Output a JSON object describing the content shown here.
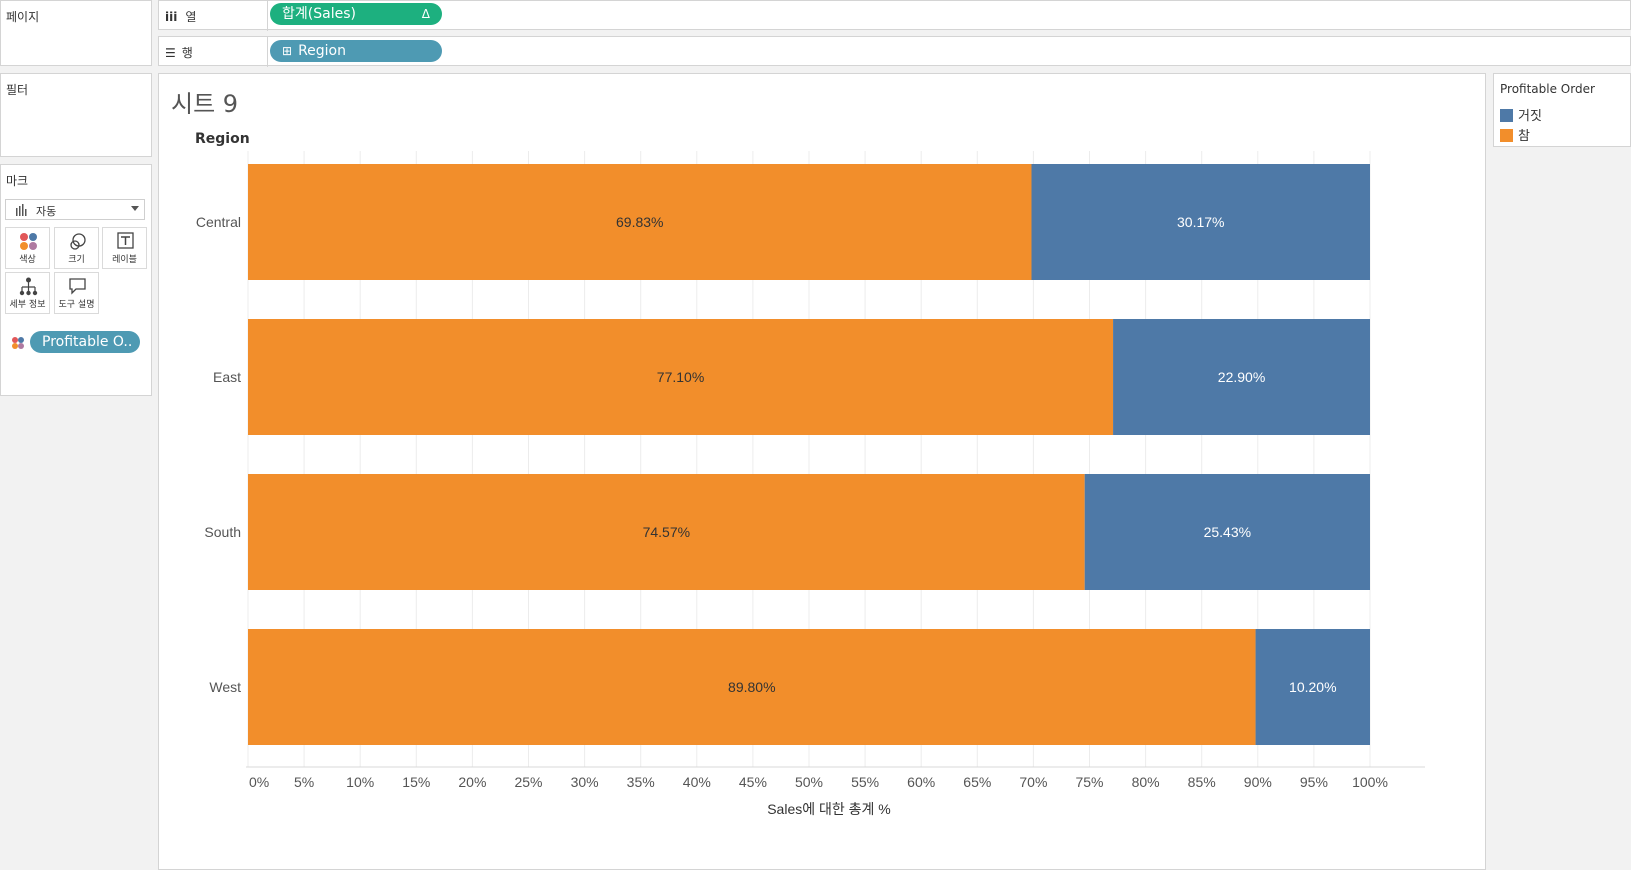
{
  "left_panel": {
    "pages_title": "페이지",
    "filters_title": "필터",
    "marks_title": "마크",
    "mark_type": {
      "icon": "bar-chart-icon",
      "label": "자동"
    },
    "mark_buttons": [
      {
        "icon": "color-icon",
        "label": "색상"
      },
      {
        "icon": "size-icon",
        "label": "크기"
      },
      {
        "icon": "label-icon",
        "label": "레이블"
      },
      {
        "icon": "detail-icon",
        "label": "세부 정보"
      },
      {
        "icon": "tooltip-icon",
        "label": "도구 설명"
      }
    ],
    "color_field_pill": "Profitable O.."
  },
  "shelves": {
    "columns": {
      "label": "열",
      "pill": "합계(Sales)",
      "pill_symbol": "Δ"
    },
    "rows": {
      "label": "행",
      "pill": "Region",
      "pill_symbol": "⊞"
    }
  },
  "sheet": {
    "title": "시트 9",
    "row_header": "Region"
  },
  "legend": {
    "title": "Profitable Order",
    "items": [
      {
        "label": "거짓",
        "color": "#4e79a7"
      },
      {
        "label": "참",
        "color": "#f28e2b"
      }
    ]
  },
  "chart_data": {
    "type": "bar",
    "orientation": "horizontal",
    "stacked": true,
    "categories": [
      "Central",
      "East",
      "South",
      "West"
    ],
    "series": [
      {
        "name": "참",
        "color": "#f28e2b",
        "values": [
          69.83,
          77.1,
          74.57,
          89.8
        ],
        "labels": [
          "69.83%",
          "77.10%",
          "74.57%",
          "89.80%"
        ],
        "label_color": "#333333"
      },
      {
        "name": "거짓",
        "color": "#4e79a7",
        "values": [
          30.17,
          22.9,
          25.43,
          10.2
        ],
        "labels": [
          "30.17%",
          "22.90%",
          "25.43%",
          "10.20%"
        ],
        "label_color": "#ffffff"
      }
    ],
    "xlim": [
      0,
      100
    ],
    "x_ticks": [
      "0%",
      "5%",
      "10%",
      "15%",
      "20%",
      "25%",
      "30%",
      "35%",
      "40%",
      "45%",
      "50%",
      "55%",
      "60%",
      "65%",
      "70%",
      "75%",
      "80%",
      "85%",
      "90%",
      "95%",
      "100%"
    ],
    "xlabel": "Sales에 대한 총계 %",
    "ylabel": "Region",
    "grid": true
  }
}
